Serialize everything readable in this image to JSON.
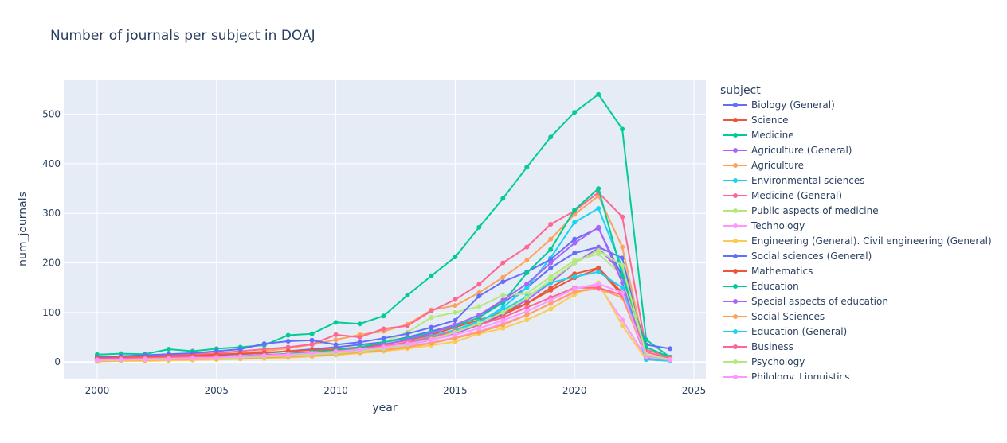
{
  "chart_data": {
    "type": "line",
    "title": "Number of journals per subject in DOAJ",
    "xlabel": "year",
    "ylabel": "num_journals",
    "xlim": [
      1998.6,
      2025.5
    ],
    "ylim": [
      -35,
      570
    ],
    "xticks": [
      2000,
      2005,
      2010,
      2015,
      2020,
      2025
    ],
    "yticks": [
      0,
      100,
      200,
      300,
      400,
      500
    ],
    "grid": true,
    "legend_title": "subject",
    "legend_position": "right",
    "series": [
      {
        "name": "Biology (General)",
        "color": "#636efa",
        "x": [
          2000,
          2001,
          2002,
          2003,
          2004,
          2005,
          2006,
          2007,
          2008,
          2009,
          2010,
          2011,
          2012,
          2013,
          2014,
          2015,
          2016,
          2017,
          2018,
          2019,
          2020,
          2021,
          2022,
          2023,
          2024
        ],
        "y": [
          8,
          9,
          10,
          11,
          12,
          14,
          16,
          18,
          22,
          26,
          30,
          35,
          40,
          50,
          62,
          75,
          95,
          120,
          150,
          190,
          220,
          232,
          210,
          15,
          5
        ]
      },
      {
        "name": "Science",
        "color": "#EF553B",
        "x": [
          2000,
          2001,
          2002,
          2003,
          2004,
          2005,
          2006,
          2007,
          2008,
          2009,
          2010,
          2011,
          2012,
          2013,
          2014,
          2015,
          2016,
          2017,
          2018,
          2019,
          2020,
          2021,
          2022,
          2023,
          2024
        ],
        "y": [
          5,
          6,
          7,
          8,
          9,
          10,
          12,
          14,
          16,
          18,
          20,
          24,
          30,
          38,
          48,
          58,
          75,
          95,
          118,
          150,
          178,
          190,
          140,
          10,
          3
        ]
      },
      {
        "name": "Medicine",
        "color": "#00cc96",
        "x": [
          2000,
          2001,
          2002,
          2003,
          2004,
          2005,
          2006,
          2007,
          2008,
          2009,
          2010,
          2011,
          2012,
          2013,
          2014,
          2015,
          2016,
          2017,
          2018,
          2019,
          2020,
          2021,
          2022,
          2023,
          2024
        ],
        "y": [
          15,
          17,
          16,
          26,
          22,
          27,
          30,
          34,
          54,
          57,
          80,
          77,
          93,
          135,
          174,
          212,
          272,
          330,
          393,
          454,
          504,
          540,
          470,
          45,
          10
        ]
      },
      {
        "name": "Agriculture (General)",
        "color": "#ab63fa",
        "x": [
          2000,
          2001,
          2002,
          2003,
          2004,
          2005,
          2006,
          2007,
          2008,
          2009,
          2010,
          2011,
          2012,
          2013,
          2014,
          2015,
          2016,
          2017,
          2018,
          2019,
          2020,
          2021,
          2022,
          2023,
          2024
        ],
        "y": [
          4,
          5,
          5,
          6,
          7,
          8,
          9,
          11,
          13,
          15,
          18,
          22,
          28,
          35,
          45,
          58,
          75,
          98,
          125,
          160,
          200,
          230,
          180,
          12,
          4
        ]
      },
      {
        "name": "Agriculture",
        "color": "#FFA15A",
        "x": [
          2000,
          2001,
          2002,
          2003,
          2004,
          2005,
          2006,
          2007,
          2008,
          2009,
          2010,
          2011,
          2012,
          2013,
          2014,
          2015,
          2016,
          2017,
          2018,
          2019,
          2020,
          2021,
          2022,
          2023,
          2024
        ],
        "y": [
          6,
          7,
          8,
          10,
          12,
          15,
          18,
          22,
          28,
          35,
          45,
          55,
          62,
          76,
          105,
          114,
          140,
          171,
          205,
          248,
          298,
          335,
          232,
          15,
          5
        ]
      },
      {
        "name": "Environmental sciences",
        "color": "#19d3f3",
        "x": [
          2000,
          2001,
          2002,
          2003,
          2004,
          2005,
          2006,
          2007,
          2008,
          2009,
          2010,
          2011,
          2012,
          2013,
          2014,
          2015,
          2016,
          2017,
          2018,
          2019,
          2020,
          2021,
          2022,
          2023,
          2024
        ],
        "y": [
          3,
          4,
          5,
          6,
          7,
          8,
          10,
          12,
          14,
          17,
          20,
          24,
          30,
          38,
          48,
          60,
          80,
          110,
          150,
          210,
          282,
          310,
          190,
          5,
          3
        ]
      },
      {
        "name": "Medicine (General)",
        "color": "#FF6692",
        "x": [
          2000,
          2001,
          2002,
          2003,
          2004,
          2005,
          2006,
          2007,
          2008,
          2009,
          2010,
          2011,
          2012,
          2013,
          2014,
          2015,
          2016,
          2017,
          2018,
          2019,
          2020,
          2021,
          2022,
          2023,
          2024
        ],
        "y": [
          10,
          11,
          12,
          14,
          16,
          18,
          22,
          26,
          30,
          36,
          55,
          50,
          67,
          73,
          103,
          126,
          157,
          200,
          232,
          278,
          305,
          342,
          293,
          25,
          10
        ]
      },
      {
        "name": "Public aspects of medicine",
        "color": "#B6E880",
        "x": [
          2000,
          2001,
          2002,
          2003,
          2004,
          2005,
          2006,
          2007,
          2008,
          2009,
          2010,
          2011,
          2012,
          2013,
          2014,
          2015,
          2016,
          2017,
          2018,
          2019,
          2020,
          2021,
          2022,
          2023,
          2024
        ],
        "y": [
          2,
          3,
          3,
          4,
          5,
          6,
          8,
          10,
          12,
          15,
          20,
          28,
          40,
          60,
          90,
          100,
          112,
          135,
          138,
          172,
          205,
          218,
          175,
          12,
          5
        ]
      },
      {
        "name": "Technology",
        "color": "#FF97FF",
        "x": [
          2000,
          2001,
          2002,
          2003,
          2004,
          2005,
          2006,
          2007,
          2008,
          2009,
          2010,
          2011,
          2012,
          2013,
          2014,
          2015,
          2016,
          2017,
          2018,
          2019,
          2020,
          2021,
          2022,
          2023,
          2024
        ],
        "y": [
          2,
          3,
          3,
          4,
          5,
          6,
          7,
          9,
          11,
          13,
          16,
          20,
          25,
          32,
          40,
          50,
          62,
          78,
          95,
          118,
          140,
          155,
          85,
          8,
          3
        ]
      },
      {
        "name": "Engineering (General). Civil engineering (General)",
        "color": "#FECB52",
        "x": [
          2000,
          2001,
          2002,
          2003,
          2004,
          2005,
          2006,
          2007,
          2008,
          2009,
          2010,
          2011,
          2012,
          2013,
          2014,
          2015,
          2016,
          2017,
          2018,
          2019,
          2020,
          2021,
          2022,
          2023,
          2024
        ],
        "y": [
          1,
          2,
          2,
          3,
          4,
          5,
          6,
          7,
          9,
          11,
          14,
          18,
          22,
          27,
          34,
          41,
          57,
          68,
          85,
          107,
          136,
          160,
          74,
          5,
          2
        ]
      },
      {
        "name": "Social sciences (General)",
        "color": "#636efa",
        "x": [
          2000,
          2001,
          2002,
          2003,
          2004,
          2005,
          2006,
          2007,
          2008,
          2009,
          2010,
          2011,
          2012,
          2013,
          2014,
          2015,
          2016,
          2017,
          2018,
          2019,
          2020,
          2021,
          2022,
          2023,
          2024
        ],
        "y": [
          10,
          12,
          14,
          16,
          18,
          22,
          26,
          37,
          42,
          44,
          35,
          40,
          48,
          57,
          70,
          84,
          133,
          162,
          182,
          207,
          248,
          270,
          172,
          35,
          27
        ]
      },
      {
        "name": "Mathematics",
        "color": "#EF553B",
        "x": [
          2000,
          2001,
          2002,
          2003,
          2004,
          2005,
          2006,
          2007,
          2008,
          2009,
          2010,
          2011,
          2012,
          2013,
          2014,
          2015,
          2016,
          2017,
          2018,
          2019,
          2020,
          2021,
          2022,
          2023,
          2024
        ],
        "y": [
          8,
          9,
          10,
          12,
          13,
          15,
          17,
          19,
          22,
          24,
          26,
          30,
          36,
          44,
          55,
          70,
          85,
          100,
          118,
          145,
          170,
          188,
          135,
          8,
          3
        ]
      },
      {
        "name": "Education",
        "color": "#00cc96",
        "x": [
          2000,
          2001,
          2002,
          2003,
          2004,
          2005,
          2006,
          2007,
          2008,
          2009,
          2010,
          2011,
          2012,
          2013,
          2014,
          2015,
          2016,
          2017,
          2018,
          2019,
          2020,
          2021,
          2022,
          2023,
          2024
        ],
        "y": [
          5,
          6,
          7,
          8,
          9,
          10,
          12,
          14,
          17,
          20,
          24,
          30,
          40,
          48,
          60,
          72,
          90,
          120,
          180,
          227,
          307,
          350,
          175,
          30,
          10
        ]
      },
      {
        "name": "Special aspects of education",
        "color": "#ab63fa",
        "x": [
          2000,
          2001,
          2002,
          2003,
          2004,
          2005,
          2006,
          2007,
          2008,
          2009,
          2010,
          2011,
          2012,
          2013,
          2014,
          2015,
          2016,
          2017,
          2018,
          2019,
          2020,
          2021,
          2022,
          2023,
          2024
        ],
        "y": [
          3,
          4,
          5,
          6,
          7,
          8,
          9,
          11,
          13,
          16,
          20,
          26,
          35,
          45,
          58,
          75,
          95,
          125,
          158,
          200,
          240,
          272,
          160,
          10,
          4
        ]
      },
      {
        "name": "Social Sciences",
        "color": "#FFA15A",
        "x": [
          2000,
          2001,
          2002,
          2003,
          2004,
          2005,
          2006,
          2007,
          2008,
          2009,
          2010,
          2011,
          2012,
          2013,
          2014,
          2015,
          2016,
          2017,
          2018,
          2019,
          2020,
          2021,
          2022,
          2023,
          2024
        ],
        "y": [
          2,
          3,
          4,
          5,
          6,
          7,
          8,
          9,
          11,
          13,
          16,
          20,
          24,
          30,
          38,
          48,
          60,
          75,
          95,
          118,
          142,
          148,
          130,
          12,
          5
        ]
      },
      {
        "name": "Education (General)",
        "color": "#19d3f3",
        "x": [
          2000,
          2001,
          2002,
          2003,
          2004,
          2005,
          2006,
          2007,
          2008,
          2009,
          2010,
          2011,
          2012,
          2013,
          2014,
          2015,
          2016,
          2017,
          2018,
          2019,
          2020,
          2021,
          2022,
          2023,
          2024
        ],
        "y": [
          4,
          5,
          6,
          7,
          8,
          9,
          10,
          12,
          14,
          17,
          20,
          24,
          30,
          40,
          52,
          65,
          82,
          105,
          132,
          160,
          172,
          182,
          150,
          5,
          2
        ]
      },
      {
        "name": "Business",
        "color": "#FF6692",
        "x": [
          2000,
          2001,
          2002,
          2003,
          2004,
          2005,
          2006,
          2007,
          2008,
          2009,
          2010,
          2011,
          2012,
          2013,
          2014,
          2015,
          2016,
          2017,
          2018,
          2019,
          2020,
          2021,
          2022,
          2023,
          2024
        ],
        "y": [
          6,
          7,
          8,
          9,
          10,
          11,
          12,
          14,
          16,
          18,
          22,
          26,
          32,
          40,
          50,
          62,
          75,
          90,
          110,
          130,
          150,
          150,
          135,
          20,
          8
        ]
      },
      {
        "name": "Psychology",
        "color": "#B6E880",
        "x": [
          2000,
          2001,
          2002,
          2003,
          2004,
          2005,
          2006,
          2007,
          2008,
          2009,
          2010,
          2011,
          2012,
          2013,
          2014,
          2015,
          2016,
          2017,
          2018,
          2019,
          2020,
          2021,
          2022,
          2023,
          2024
        ],
        "y": [
          3,
          4,
          5,
          6,
          7,
          8,
          9,
          11,
          13,
          15,
          18,
          22,
          27,
          35,
          46,
          60,
          78,
          100,
          130,
          165,
          200,
          225,
          195,
          15,
          5
        ]
      },
      {
        "name": "Philology. Linguistics",
        "color": "#FF97FF",
        "x": [
          2000,
          2001,
          2002,
          2003,
          2004,
          2005,
          2006,
          2007,
          2008,
          2009,
          2010,
          2011,
          2012,
          2013,
          2014,
          2015,
          2016,
          2017,
          2018,
          2019,
          2020,
          2021,
          2022,
          2023,
          2024
        ],
        "y": [
          4,
          5,
          6,
          7,
          8,
          9,
          11,
          13,
          15,
          18,
          21,
          25,
          30,
          37,
          45,
          55,
          68,
          84,
          102,
          125,
          148,
          158,
          140,
          10,
          4
        ]
      }
    ]
  }
}
